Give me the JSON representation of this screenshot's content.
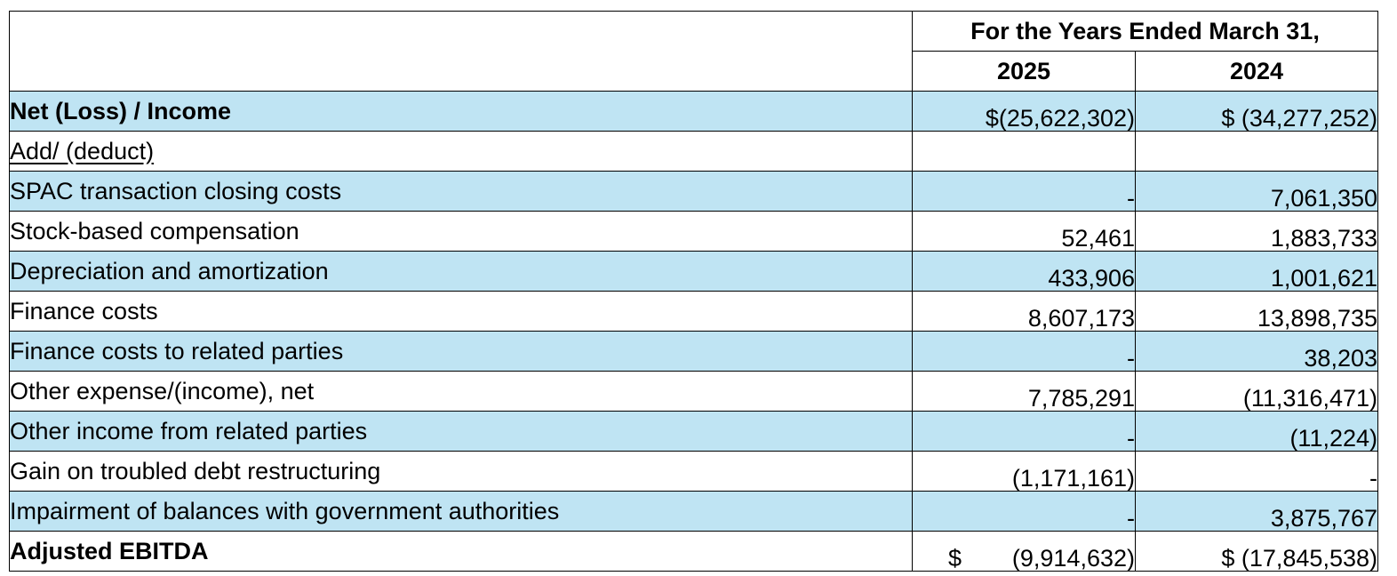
{
  "header": {
    "period_title": "For the Years Ended March 31,",
    "year_a": "2025",
    "year_b": "2024"
  },
  "net_row": {
    "label": "Net (Loss) / Income",
    "val_2025": "$(25,622,302)",
    "val_2024": "$ (34,277,252)"
  },
  "adjust_label": "Add/ (deduct)",
  "rows": [
    {
      "label": "SPAC transaction closing costs",
      "val_2025": "-",
      "val_2024": "7,061,350"
    },
    {
      "label": "Stock-based compensation",
      "val_2025": "52,461",
      "val_2024": "1,883,733"
    },
    {
      "label": "Depreciation and amortization",
      "val_2025": "433,906",
      "val_2024": "1,001,621"
    },
    {
      "label": "Finance costs",
      "val_2025": "8,607,173",
      "val_2024": "13,898,735"
    },
    {
      "label": "Finance costs to related parties",
      "val_2025": "-",
      "val_2024": "38,203"
    },
    {
      "label": "Other expense/(income), net",
      "val_2025": "7,785,291",
      "val_2024": "(11,316,471)"
    },
    {
      "label": "Other income from related parties",
      "val_2025": "-",
      "val_2024": "(11,224)"
    },
    {
      "label": "Gain on troubled debt restructuring",
      "val_2025": "(1,171,161)",
      "val_2024": "-"
    },
    {
      "label": "Impairment of balances with government authorities",
      "val_2025": "-",
      "val_2024": "3,875,767"
    }
  ],
  "total_row": {
    "label": "Adjusted EBITDA",
    "currency_2025": "$",
    "val_2025": "(9,914,632)",
    "val_2024": "$ (17,845,538)"
  },
  "colors": {
    "row_shade": "#bfe4f3",
    "border": "#000000"
  }
}
